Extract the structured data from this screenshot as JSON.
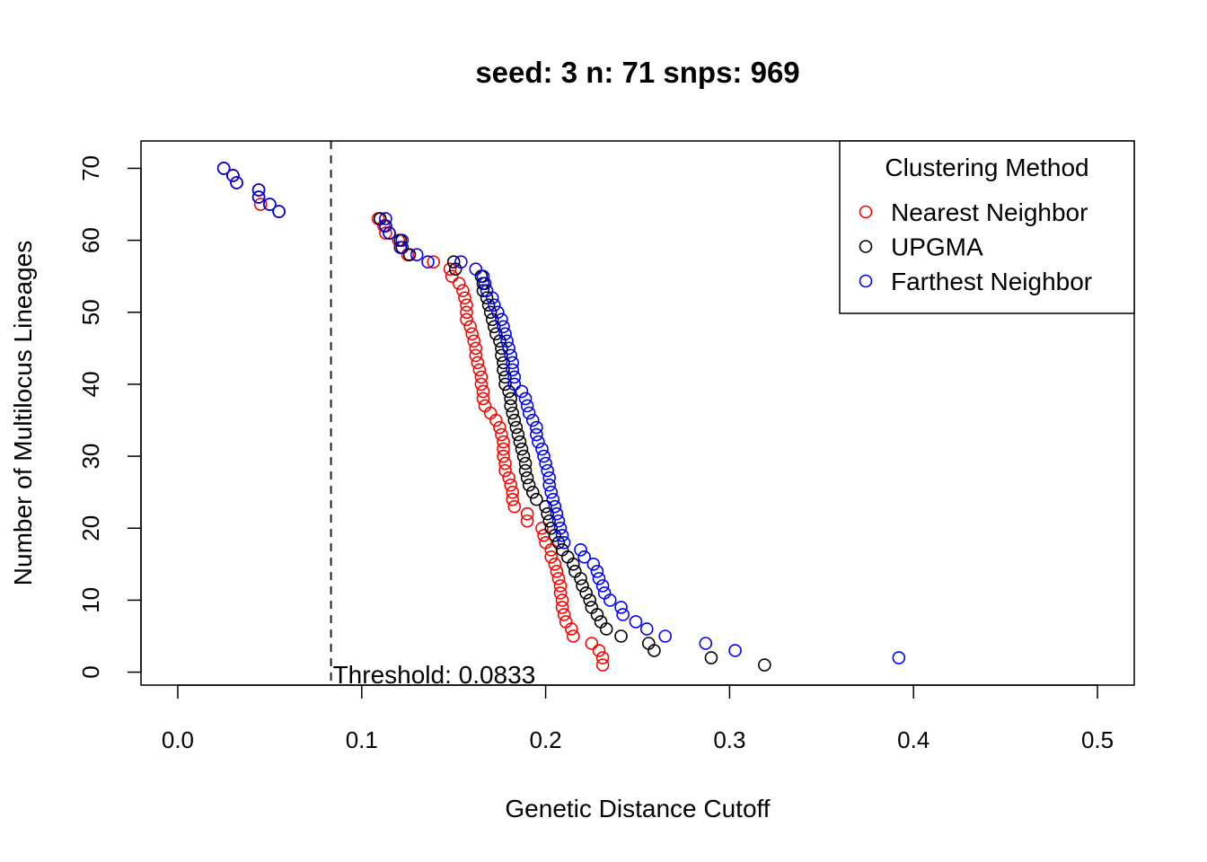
{
  "chart_data": {
    "type": "scatter",
    "title": "seed: 3 n: 71 snps: 969",
    "xlabel": "Genetic Distance Cutoff",
    "ylabel": "Number of Multilocus Lineages",
    "xlim": [
      -0.02,
      0.52
    ],
    "ylim": [
      -1.8,
      73.8
    ],
    "xticks": [
      "0.0",
      "0.1",
      "0.2",
      "0.3",
      "0.4",
      "0.5"
    ],
    "yticks": [
      "0",
      "10",
      "20",
      "30",
      "40",
      "50",
      "60",
      "70"
    ],
    "grid": false,
    "legend": {
      "title": "Clustering Method",
      "placement": "top-right",
      "entries": [
        "Nearest Neighbor",
        "UPGMA",
        "Farthest Neighbor"
      ]
    },
    "annotation": {
      "threshold_x": 0.0833,
      "text": "Threshold: 0.0833"
    },
    "series": [
      {
        "name": "Nearest Neighbor",
        "color": "#ff0000",
        "points": [
          [
            0.025,
            70
          ],
          [
            0.03,
            69
          ],
          [
            0.032,
            68
          ],
          [
            0.044,
            67
          ],
          [
            0.044,
            66
          ],
          [
            0.045,
            65
          ],
          [
            0.055,
            64
          ],
          [
            0.109,
            63
          ],
          [
            0.112,
            62
          ],
          [
            0.113,
            61
          ],
          [
            0.12,
            60
          ],
          [
            0.121,
            59
          ],
          [
            0.125,
            58
          ],
          [
            0.139,
            57
          ],
          [
            0.148,
            56
          ],
          [
            0.149,
            55
          ],
          [
            0.153,
            54
          ],
          [
            0.155,
            53
          ],
          [
            0.156,
            52
          ],
          [
            0.157,
            51
          ],
          [
            0.157,
            50
          ],
          [
            0.157,
            49
          ],
          [
            0.159,
            48
          ],
          [
            0.16,
            47
          ],
          [
            0.161,
            46
          ],
          [
            0.162,
            45
          ],
          [
            0.162,
            44
          ],
          [
            0.163,
            43
          ],
          [
            0.164,
            42
          ],
          [
            0.165,
            41
          ],
          [
            0.165,
            40
          ],
          [
            0.166,
            39
          ],
          [
            0.166,
            38
          ],
          [
            0.167,
            37
          ],
          [
            0.17,
            36
          ],
          [
            0.173,
            35
          ],
          [
            0.175,
            34
          ],
          [
            0.176,
            33
          ],
          [
            0.177,
            32
          ],
          [
            0.177,
            31
          ],
          [
            0.177,
            30
          ],
          [
            0.178,
            29
          ],
          [
            0.178,
            28
          ],
          [
            0.18,
            27
          ],
          [
            0.181,
            26
          ],
          [
            0.182,
            25
          ],
          [
            0.182,
            24
          ],
          [
            0.183,
            23
          ],
          [
            0.19,
            22
          ],
          [
            0.19,
            21
          ],
          [
            0.198,
            20
          ],
          [
            0.199,
            19
          ],
          [
            0.2,
            18
          ],
          [
            0.203,
            17
          ],
          [
            0.203,
            16
          ],
          [
            0.205,
            15
          ],
          [
            0.206,
            14
          ],
          [
            0.207,
            13
          ],
          [
            0.208,
            12
          ],
          [
            0.208,
            11
          ],
          [
            0.209,
            10
          ],
          [
            0.209,
            9
          ],
          [
            0.21,
            8
          ],
          [
            0.211,
            7
          ],
          [
            0.214,
            6
          ],
          [
            0.215,
            5
          ],
          [
            0.225,
            4
          ],
          [
            0.229,
            3
          ],
          [
            0.231,
            2
          ],
          [
            0.231,
            1
          ]
        ]
      },
      {
        "name": "UPGMA",
        "color": "#000000",
        "points": [
          [
            0.025,
            70
          ],
          [
            0.03,
            69
          ],
          [
            0.032,
            68
          ],
          [
            0.044,
            67
          ],
          [
            0.044,
            66
          ],
          [
            0.05,
            65
          ],
          [
            0.055,
            64
          ],
          [
            0.11,
            63
          ],
          [
            0.113,
            62
          ],
          [
            0.115,
            61
          ],
          [
            0.121,
            60
          ],
          [
            0.122,
            59
          ],
          [
            0.126,
            58
          ],
          [
            0.15,
            57
          ],
          [
            0.151,
            56
          ],
          [
            0.165,
            55
          ],
          [
            0.166,
            54
          ],
          [
            0.166,
            53
          ],
          [
            0.168,
            52
          ],
          [
            0.169,
            51
          ],
          [
            0.17,
            50
          ],
          [
            0.171,
            49
          ],
          [
            0.172,
            48
          ],
          [
            0.173,
            47
          ],
          [
            0.175,
            46
          ],
          [
            0.176,
            45
          ],
          [
            0.176,
            44
          ],
          [
            0.177,
            43
          ],
          [
            0.177,
            42
          ],
          [
            0.178,
            41
          ],
          [
            0.178,
            40
          ],
          [
            0.18,
            39
          ],
          [
            0.181,
            38
          ],
          [
            0.181,
            37
          ],
          [
            0.182,
            36
          ],
          [
            0.183,
            35
          ],
          [
            0.184,
            34
          ],
          [
            0.185,
            33
          ],
          [
            0.186,
            32
          ],
          [
            0.187,
            31
          ],
          [
            0.188,
            30
          ],
          [
            0.189,
            29
          ],
          [
            0.189,
            28
          ],
          [
            0.19,
            27
          ],
          [
            0.191,
            26
          ],
          [
            0.193,
            25
          ],
          [
            0.195,
            24
          ],
          [
            0.2,
            23
          ],
          [
            0.201,
            22
          ],
          [
            0.202,
            21
          ],
          [
            0.203,
            20
          ],
          [
            0.205,
            19
          ],
          [
            0.207,
            18
          ],
          [
            0.209,
            17
          ],
          [
            0.212,
            16
          ],
          [
            0.215,
            15
          ],
          [
            0.216,
            14
          ],
          [
            0.219,
            13
          ],
          [
            0.22,
            12
          ],
          [
            0.222,
            11
          ],
          [
            0.224,
            10
          ],
          [
            0.225,
            9
          ],
          [
            0.228,
            8
          ],
          [
            0.23,
            7
          ],
          [
            0.233,
            6
          ],
          [
            0.241,
            5
          ],
          [
            0.256,
            4
          ],
          [
            0.259,
            3
          ],
          [
            0.29,
            2
          ],
          [
            0.319,
            1
          ]
        ]
      },
      {
        "name": "Farthest Neighbor",
        "color": "#0000ff",
        "points": [
          [
            0.025,
            70
          ],
          [
            0.03,
            69
          ],
          [
            0.032,
            68
          ],
          [
            0.044,
            67
          ],
          [
            0.044,
            66
          ],
          [
            0.05,
            65
          ],
          [
            0.055,
            64
          ],
          [
            0.113,
            63
          ],
          [
            0.113,
            62
          ],
          [
            0.115,
            61
          ],
          [
            0.122,
            60
          ],
          [
            0.121,
            59
          ],
          [
            0.13,
            58
          ],
          [
            0.136,
            57
          ],
          [
            0.154,
            57
          ],
          [
            0.162,
            56
          ],
          [
            0.166,
            55
          ],
          [
            0.167,
            54
          ],
          [
            0.168,
            53
          ],
          [
            0.171,
            52
          ],
          [
            0.172,
            51
          ],
          [
            0.174,
            50
          ],
          [
            0.176,
            49
          ],
          [
            0.177,
            48
          ],
          [
            0.178,
            47
          ],
          [
            0.179,
            46
          ],
          [
            0.18,
            45
          ],
          [
            0.181,
            44
          ],
          [
            0.182,
            43
          ],
          [
            0.182,
            42
          ],
          [
            0.183,
            41
          ],
          [
            0.183,
            40
          ],
          [
            0.187,
            39
          ],
          [
            0.189,
            38
          ],
          [
            0.19,
            37
          ],
          [
            0.191,
            36
          ],
          [
            0.193,
            35
          ],
          [
            0.195,
            34
          ],
          [
            0.195,
            33
          ],
          [
            0.196,
            32
          ],
          [
            0.198,
            31
          ],
          [
            0.199,
            30
          ],
          [
            0.2,
            29
          ],
          [
            0.201,
            28
          ],
          [
            0.202,
            27
          ],
          [
            0.202,
            26
          ],
          [
            0.203,
            25
          ],
          [
            0.204,
            24
          ],
          [
            0.205,
            23
          ],
          [
            0.206,
            22
          ],
          [
            0.207,
            21
          ],
          [
            0.208,
            20
          ],
          [
            0.209,
            19
          ],
          [
            0.21,
            18
          ],
          [
            0.219,
            17
          ],
          [
            0.221,
            16
          ],
          [
            0.226,
            15
          ],
          [
            0.228,
            14
          ],
          [
            0.229,
            13
          ],
          [
            0.231,
            12
          ],
          [
            0.232,
            11
          ],
          [
            0.235,
            10
          ],
          [
            0.241,
            9
          ],
          [
            0.242,
            8
          ],
          [
            0.249,
            7
          ],
          [
            0.255,
            6
          ],
          [
            0.265,
            5
          ],
          [
            0.287,
            4
          ],
          [
            0.303,
            3
          ],
          [
            0.392,
            2
          ]
        ]
      }
    ]
  }
}
